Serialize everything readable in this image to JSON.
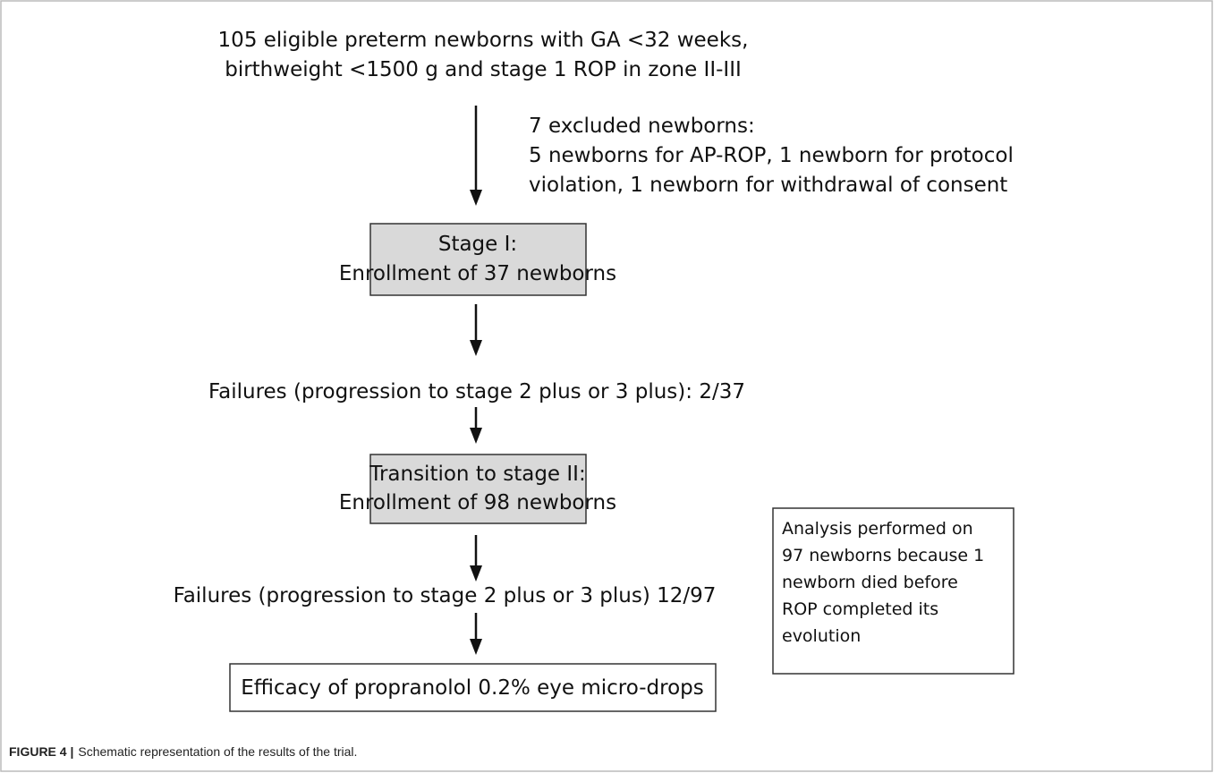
{
  "eligible": {
    "lines": [
      "105 eligible preterm newborns with GA <32 weeks,",
      "birthweight <1500 g and stage 1 ROP in zone II-III"
    ]
  },
  "excluded": {
    "lines": [
      "7 excluded newborns:",
      "5 newborns for AP-ROP, 1 newborn for protocol",
      "violation, 1 newborn for withdrawal of consent"
    ]
  },
  "stage_1_box": {
    "lines": [
      "Stage I:",
      "Enrollment of 37 newborns"
    ]
  },
  "failures_stage_1": {
    "text": "Failures (progression to stage 2 plus or 3 plus): 2/37"
  },
  "stage_2_box": {
    "lines": [
      "Transition to stage II:",
      "Enrollment of 98 newborns"
    ]
  },
  "failures_stage_2": {
    "text": "Failures (progression to stage 2 plus or 3 plus) 12/97"
  },
  "outcome_box": {
    "text": "Efficacy of propranolol 0.2% eye micro-drops"
  },
  "analysis_note": {
    "lines": [
      "Analysis performed on",
      "97 newborns because 1",
      "newborn died before",
      "ROP completed its",
      "evolution"
    ]
  },
  "caption": {
    "label": "FIGURE 4 |",
    "text": "Schematic representation of the results of the trial."
  }
}
